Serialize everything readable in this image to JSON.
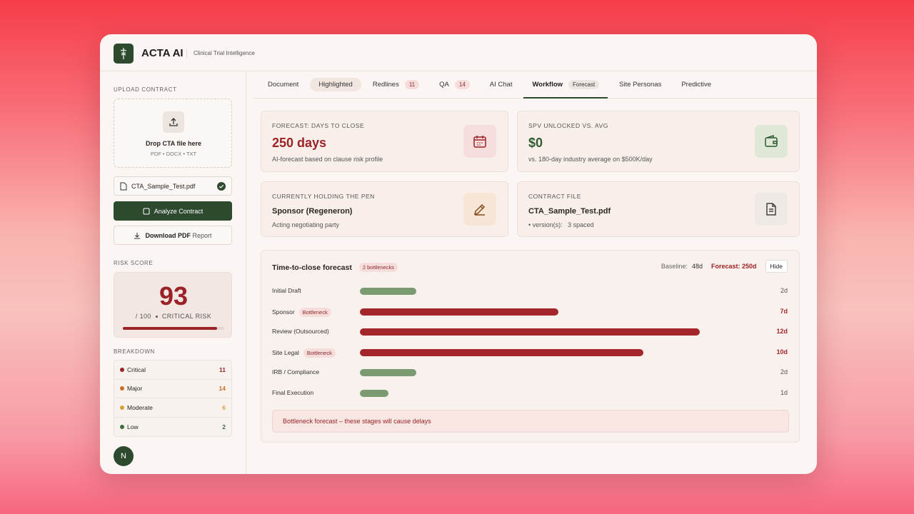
{
  "header": {
    "brand": "ACTA AI",
    "subtitle": "Clinical Trial Intelligence"
  },
  "sidebar": {
    "upload_label": "UPLOAD CONTRACT",
    "drop_title": "Drop CTA file here",
    "drop_formats": "PDF • DOCX • TXT",
    "file_name": "CTA_Sample_Test.pdf",
    "analyze": "Analyze Contract",
    "download": "Download PDF",
    "download_suffix": "Report",
    "risk_label": "RISK SCORE",
    "risk_score": 93,
    "risk_max": {
      "value": 100,
      "label": "/ 100"
    },
    "risk_level": "CRITICAL RISK",
    "breakdown_label": "BREAKDOWN",
    "breakdown": [
      {
        "name": "Critical",
        "count": 11,
        "color": "#9b2226"
      },
      {
        "name": "Major",
        "count": 14,
        "color": "#c8702a"
      },
      {
        "name": "Moderate",
        "count": 6,
        "color": "#d4a137"
      },
      {
        "name": "Low",
        "count": 2,
        "color": "#3f6b3f"
      }
    ],
    "avatar": "N"
  },
  "tabs": [
    {
      "label": "Document"
    },
    {
      "label": "Highlighted",
      "pill": true
    },
    {
      "label": "Redlines",
      "badge": "11"
    },
    {
      "label": "QA",
      "badge": "14"
    },
    {
      "label": "AI Chat"
    },
    {
      "label": "Workflow",
      "badge": "Forecast",
      "active": true
    },
    {
      "label": "Site Personas"
    },
    {
      "label": "Predictive"
    }
  ],
  "cards": [
    {
      "label": "FORECAST: DAYS TO CLOSE",
      "value": "250 days",
      "note": "AI-forecast based on clause risk profile",
      "accent": "#9b2226",
      "icon_bg": "#f6dede"
    },
    {
      "label": "SPV UNLOCKED VS. AVG",
      "value": "$0",
      "note": "vs. 180-day industry average on $500K/day",
      "accent": "#2f5a32",
      "icon_bg": "#dfe8d6"
    },
    {
      "label": "CURRENTLY HOLDING THE PEN",
      "value": "Sponsor (Regeneron)",
      "note": "Acting negotiating party",
      "accent": "#2a2522",
      "icon_bg": "#f7e6d6"
    },
    {
      "label": "CONTRACT FILE",
      "value": "CTA_Sample_Test.pdf",
      "note": "• version(s):   3 spaced",
      "accent": "#2a2522",
      "icon_bg": "#efe9e5"
    }
  ],
  "forecast": {
    "title": "Time-to-close forecast",
    "badge": "2 bottlenecks",
    "baseline_label": "Baseline:",
    "baseline_value": "48d",
    "forecast_text": "Forecast: 250d",
    "hide": "Hide",
    "stages": [
      {
        "name": "Initial Draft",
        "days": 2,
        "label": "2d",
        "color": "#7a9a72",
        "delayed": false
      },
      {
        "name": "Sponsor",
        "tag": "Bottleneck",
        "days": 7,
        "label": "7d",
        "color": "#a3262a",
        "delayed": true
      },
      {
        "name": "Review (Outsourced)",
        "days": 12,
        "label": "12d",
        "color": "#a3262a",
        "delayed": true
      },
      {
        "name": "Site Legal",
        "tag": "Bottleneck",
        "days": 10,
        "label": "10d",
        "color": "#a3262a",
        "delayed": true
      },
      {
        "name": "IRB / Compliance",
        "days": 2,
        "label": "2d",
        "color": "#7a9a72",
        "delayed": false
      },
      {
        "name": "Final Execution",
        "days": 1,
        "label": "1d",
        "color": "#7a9a72",
        "delayed": false
      }
    ],
    "note": "Bottleneck forecast – these stages will cause delays"
  }
}
